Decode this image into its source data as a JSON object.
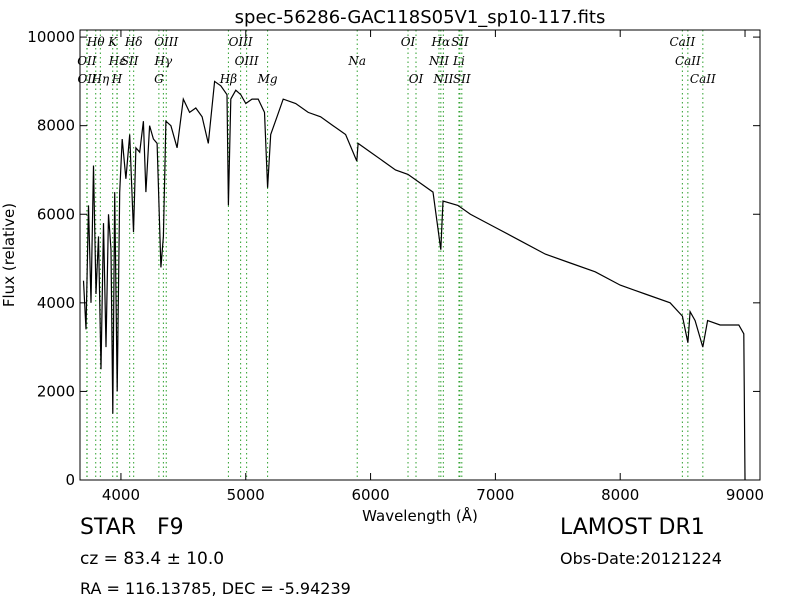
{
  "chart_data": {
    "type": "line",
    "title": "spec-56286-GAC118S05V1_sp10-117.fits",
    "x_label": "Wavelength (Å)",
    "y_label": "Flux (relative)",
    "xlim": [
      3672,
      9120
    ],
    "ylim": [
      0,
      10160
    ],
    "xticks": [
      4000,
      5000,
      6000,
      7000,
      8000,
      9000
    ],
    "yticks": [
      0,
      2000,
      4000,
      6000,
      8000,
      10000
    ],
    "x": [
      3700,
      3720,
      3740,
      3760,
      3780,
      3800,
      3820,
      3840,
      3860,
      3880,
      3900,
      3920,
      3935,
      3950,
      3970,
      3990,
      4010,
      4040,
      4070,
      4101,
      4120,
      4150,
      4180,
      4200,
      4230,
      4260,
      4290,
      4320,
      4340,
      4360,
      4400,
      4450,
      4500,
      4550,
      4600,
      4650,
      4700,
      4750,
      4800,
      4850,
      4861,
      4880,
      4920,
      4960,
      5000,
      5050,
      5100,
      5150,
      5175,
      5200,
      5250,
      5300,
      5400,
      5500,
      5600,
      5700,
      5800,
      5890,
      5900,
      6000,
      6100,
      6200,
      6300,
      6400,
      6500,
      6563,
      6580,
      6700,
      6800,
      7000,
      7200,
      7400,
      7600,
      7800,
      8000,
      8200,
      8400,
      8498,
      8542,
      8560,
      8600,
      8662,
      8700,
      8800,
      8950,
      8990,
      9000
    ],
    "series": [
      {
        "name": "Flux",
        "color": "#000000",
        "values": [
          4500,
          3400,
          6200,
          4000,
          7100,
          4200,
          5500,
          2500,
          5800,
          3000,
          6000,
          5200,
          1500,
          6500,
          2000,
          6500,
          7700,
          6800,
          7800,
          5600,
          7500,
          7400,
          8100,
          6500,
          8000,
          7700,
          7600,
          4800,
          5500,
          8100,
          8000,
          7500,
          8600,
          8300,
          8400,
          8200,
          7600,
          9000,
          8900,
          8700,
          6200,
          8600,
          8800,
          8700,
          8500,
          8600,
          8600,
          8300,
          6600,
          7800,
          8200,
          8600,
          8500,
          8300,
          8200,
          8000,
          7800,
          7200,
          7600,
          7400,
          7200,
          7000,
          6900,
          6700,
          6500,
          5200,
          6300,
          6200,
          6000,
          5700,
          5400,
          5100,
          4900,
          4700,
          4400,
          4200,
          4000,
          3700,
          3100,
          3800,
          3600,
          3000,
          3600,
          3500,
          3500,
          3300,
          0
        ]
      }
    ],
    "line_color": "#2ca02c",
    "spectral_lines": [
      {
        "name": "Hθ",
        "wavelength": 3798
      },
      {
        "name": "K",
        "wavelength": 3934
      },
      {
        "name": "Hδ",
        "wavelength": 4102
      },
      {
        "name": "OIII",
        "wavelength": 4363
      },
      {
        "name": "OIII",
        "wavelength": 4959
      },
      {
        "name": "OI",
        "wavelength": 6300
      },
      {
        "name": "Hα",
        "wavelength": 6563
      },
      {
        "name": "SII",
        "wavelength": 6716
      },
      {
        "name": "CaII",
        "wavelength": 8498
      },
      {
        "name": "OII",
        "wavelength": 3727
      },
      {
        "name": "Hε",
        "wavelength": 3970
      },
      {
        "name": "SII",
        "wavelength": 4070
      },
      {
        "name": "Hγ",
        "wavelength": 4340
      },
      {
        "name": "OIII",
        "wavelength": 5007
      },
      {
        "name": "Na",
        "wavelength": 5893
      },
      {
        "name": "NII",
        "wavelength": 6548
      },
      {
        "name": "Li",
        "wavelength": 6708
      },
      {
        "name": "CaII",
        "wavelength": 8542
      },
      {
        "name": "OII",
        "wavelength": 3729
      },
      {
        "name": "Hη",
        "wavelength": 3835
      },
      {
        "name": "H",
        "wavelength": 3968
      },
      {
        "name": "G",
        "wavelength": 4304
      },
      {
        "name": "Hβ",
        "wavelength": 4861
      },
      {
        "name": "Mg",
        "wavelength": 5175
      },
      {
        "name": "OI",
        "wavelength": 6364
      },
      {
        "name": "NII",
        "wavelength": 6583
      },
      {
        "name": "SII",
        "wavelength": 6731
      },
      {
        "name": "CaII",
        "wavelength": 8662
      }
    ],
    "annotations": [
      "STAR   F9",
      "LAMOST DR1",
      "cz = 83.4 ± 10.0",
      "Obs-Date:20121224",
      "RA = 116.13785, DEC = -5.94239"
    ]
  }
}
